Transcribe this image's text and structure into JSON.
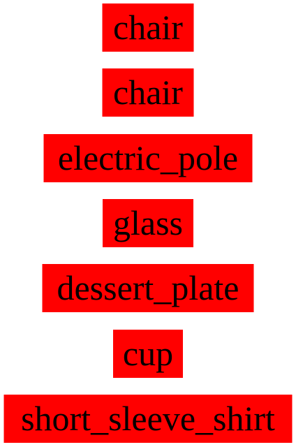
{
  "labels": [
    "chair",
    "chair",
    "electric_pole",
    "glass",
    "dessert_plate",
    "cup",
    "short_sleeve_shirt"
  ],
  "colors": {
    "label_background": "#ff0000",
    "label_text": "#000000",
    "page_background": "#ffffff"
  }
}
